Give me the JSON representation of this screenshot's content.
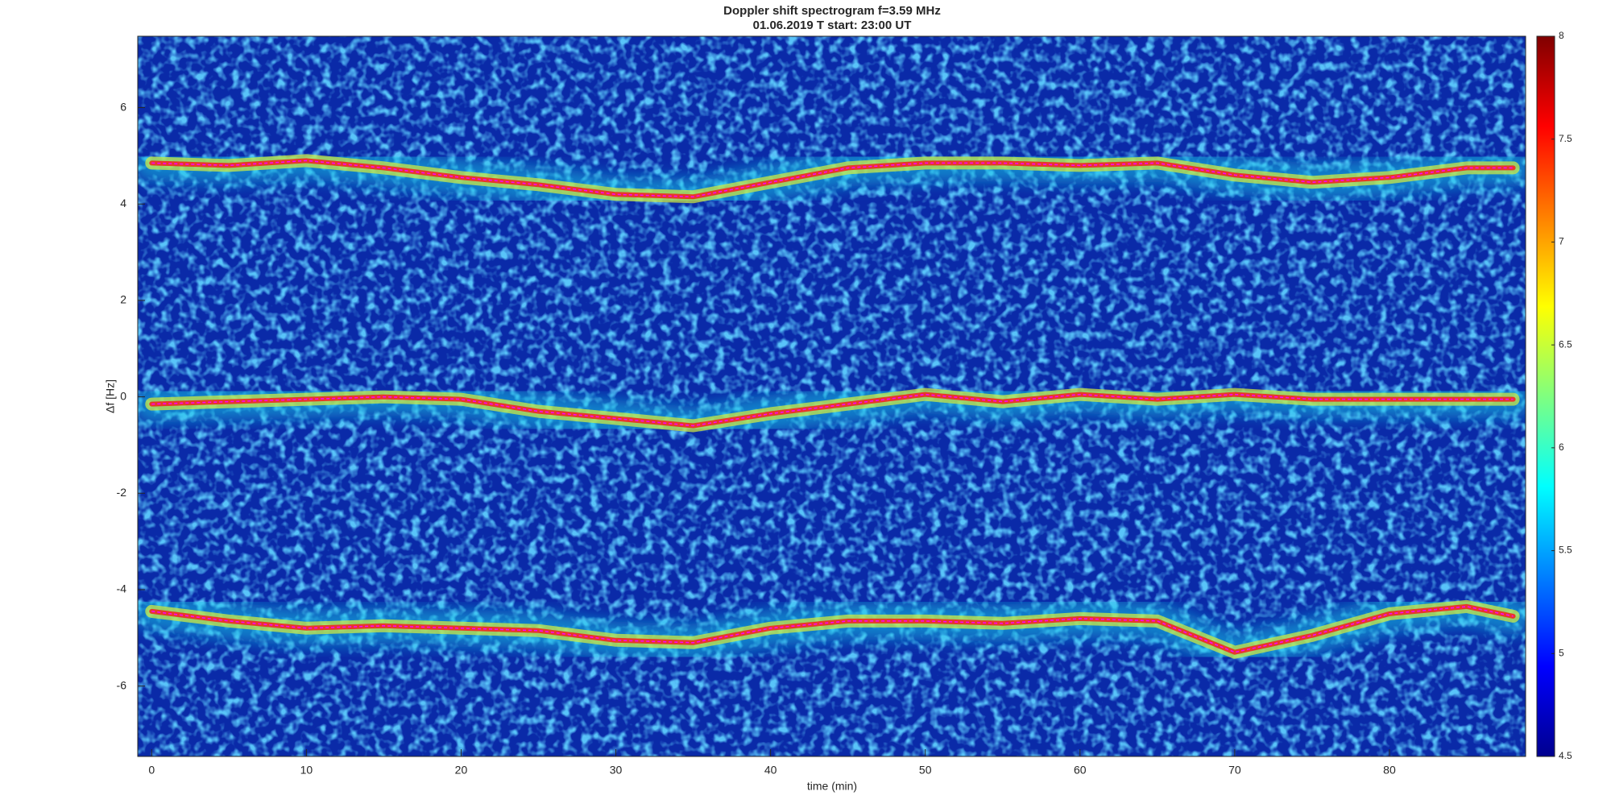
{
  "chart_data": {
    "type": "spectrogram",
    "title": "Doppler shift spectrogram f=3.59 MHz",
    "subtitle": "01.06.2019   T start: 23:00 UT",
    "x_label": "time (min)",
    "y_label": "Δf [Hz]",
    "xlim": [
      -0.9,
      88.8
    ],
    "ylim": [
      -7.46,
      7.48
    ],
    "xticks": [
      0,
      10,
      20,
      30,
      40,
      50,
      60,
      70,
      80
    ],
    "yticks": [
      -6,
      -4,
      -2,
      0,
      2,
      4,
      6
    ],
    "colormap": "jet",
    "clim": [
      4.5,
      8
    ],
    "cticks": [
      4.5,
      5,
      5.5,
      6,
      6.5,
      7,
      7.5,
      8
    ],
    "x": [
      0,
      5,
      10,
      15,
      20,
      25,
      30,
      35,
      40,
      45,
      50,
      55,
      60,
      65,
      70,
      75,
      80,
      85,
      88
    ],
    "series": [
      {
        "color": "#ff00ff",
        "values": [
          4.85,
          4.8,
          4.9,
          4.75,
          4.55,
          4.4,
          4.2,
          4.15,
          4.45,
          4.75,
          4.85,
          4.85,
          4.8,
          4.85,
          4.6,
          4.45,
          4.55,
          4.75,
          4.75
        ]
      },
      {
        "color": "#ff00ff",
        "values": [
          -0.15,
          -0.1,
          -0.05,
          0,
          -0.05,
          -0.3,
          -0.45,
          -0.6,
          -0.35,
          -0.15,
          0.05,
          -0.1,
          0.05,
          -0.05,
          0.05,
          -0.05,
          -0.05,
          -0.05,
          -0.05
        ]
      },
      {
        "color": "#ff00ff",
        "values": [
          -4.45,
          -4.65,
          -4.8,
          -4.75,
          -4.8,
          -4.85,
          -5.05,
          -5.1,
          -4.8,
          -4.65,
          -4.65,
          -4.7,
          -4.6,
          -4.65,
          -5.3,
          -4.95,
          -4.5,
          -4.35,
          -4.55
        ]
      }
    ]
  }
}
